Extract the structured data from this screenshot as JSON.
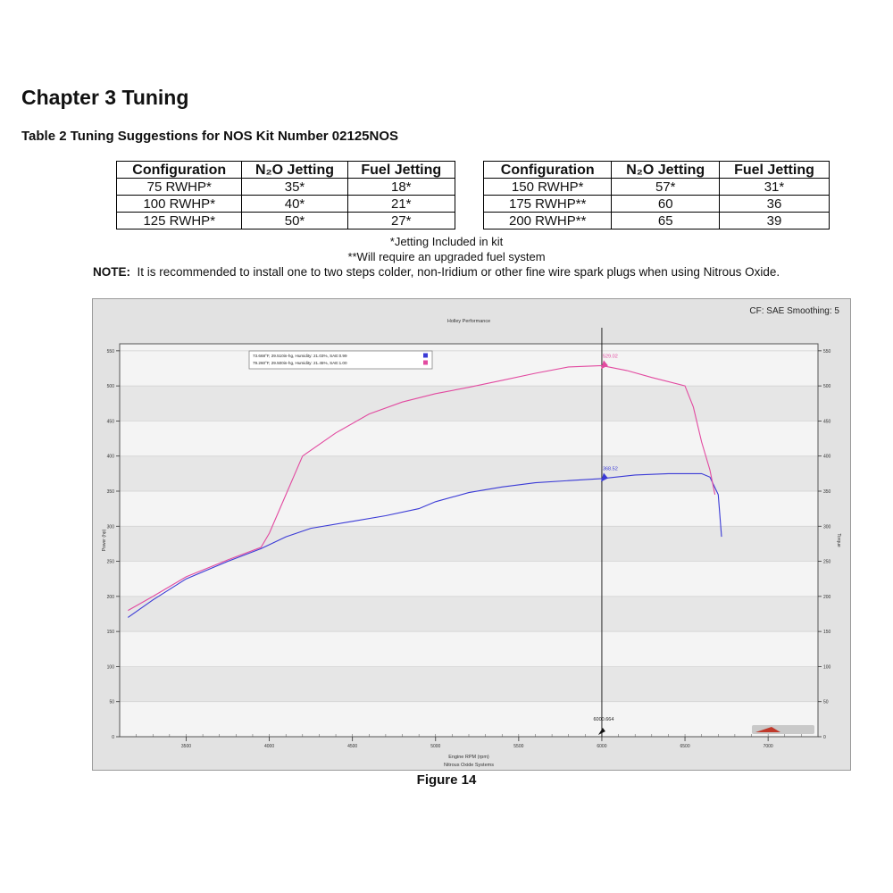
{
  "document": {
    "chapter_title": "Chapter 3 Tuning",
    "table_title": "Table 2 Tuning Suggestions for NOS Kit Number 02125NOS",
    "footnote_1": "*Jetting Included in kit",
    "footnote_2": "**Will require an upgraded fuel system",
    "note_label": "NOTE:",
    "note_text": "It is recommended to install one to two steps colder, non-Iridium or other fine wire spark plugs when using Nitrous Oxide.",
    "figure_caption": "Figure 14"
  },
  "table_left": {
    "headers": [
      "Configuration",
      "N₂O Jetting",
      "Fuel Jetting"
    ],
    "rows": [
      [
        "75 RWHP*",
        "35*",
        "18*"
      ],
      [
        "100 RWHP*",
        "40*",
        "21*"
      ],
      [
        "125 RWHP*",
        "50*",
        "27*"
      ]
    ]
  },
  "table_right": {
    "headers": [
      "Configuration",
      "N₂O Jetting",
      "Fuel Jetting"
    ],
    "rows": [
      [
        "150 RWHP*",
        "57*",
        "31*"
      ],
      [
        "175 RWHP**",
        "60",
        "36"
      ],
      [
        "200 RWHP**",
        "65",
        "39"
      ]
    ]
  },
  "chart_data": {
    "type": "line",
    "title": "Holley Performance",
    "subtitle": "Nitrous Oxide Systems",
    "corner_text": "CF: SAE Smoothing: 5",
    "xlabel": "Engine RPM (rpm)",
    "ylabel": "Power (hp)",
    "ylabel_right": "Torque",
    "xlim": [
      3100,
      7300
    ],
    "ylim": [
      0,
      560
    ],
    "x_ticks": [
      3500,
      4000,
      4500,
      5000,
      5500,
      6000,
      6500,
      7000
    ],
    "y_ticks": [
      0,
      50,
      100,
      150,
      200,
      250,
      300,
      350,
      400,
      450,
      500,
      550
    ],
    "grid": true,
    "legend_position": "top-left",
    "cursor": {
      "x": 6000,
      "label": "6000.664"
    },
    "series": [
      {
        "name": "73.668°F, 29.510in-hg, Humidity: 21.03%, SAE:0.99",
        "color": "#3a3ad6",
        "marker_label": "368.52",
        "marker_y": 368.52,
        "x": [
          3150,
          3300,
          3500,
          3750,
          3950,
          4100,
          4250,
          4500,
          4700,
          4900,
          5000,
          5200,
          5400,
          5600,
          5800,
          6000,
          6200,
          6400,
          6600,
          6650,
          6700,
          6720
        ],
        "y": [
          170,
          195,
          225,
          250,
          268,
          285,
          297,
          307,
          315,
          325,
          335,
          348,
          356,
          362,
          365,
          368,
          373,
          375,
          375,
          370,
          345,
          285
        ]
      },
      {
        "name": "79.260°F, 29.500in-hg, Humidity: 21.45%, SAE:1.00",
        "color": "#e24aa0",
        "marker_label": "529.02",
        "marker_y": 529.02,
        "x": [
          3150,
          3300,
          3500,
          3750,
          3950,
          4000,
          4100,
          4200,
          4400,
          4600,
          4800,
          5000,
          5200,
          5400,
          5600,
          5800,
          6000,
          6150,
          6300,
          6500,
          6550,
          6600,
          6650,
          6680
        ],
        "y": [
          180,
          200,
          228,
          252,
          270,
          290,
          345,
          400,
          433,
          460,
          477,
          489,
          498,
          508,
          518,
          527,
          529,
          522,
          512,
          500,
          470,
          420,
          380,
          345
        ]
      }
    ]
  }
}
